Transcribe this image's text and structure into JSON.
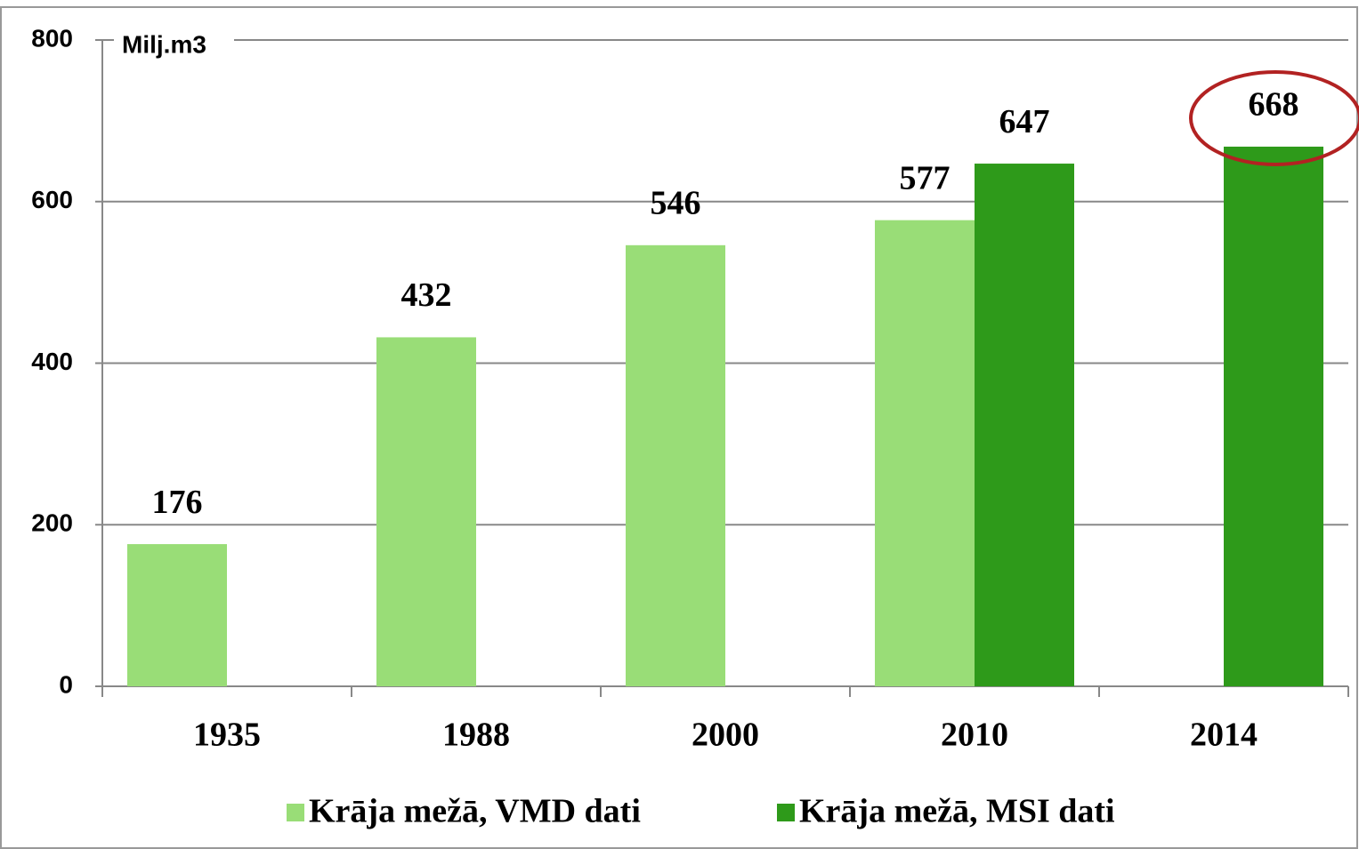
{
  "chart_data": {
    "type": "bar",
    "y_axis_label": "Milj.m3",
    "categories": [
      "1935",
      "1988",
      "2000",
      "2010",
      "2014"
    ],
    "series": [
      {
        "name": "Krāja mežā, VMD dati",
        "color": "#99dd77",
        "values": [
          176,
          432,
          546,
          577,
          null
        ]
      },
      {
        "name": "Krāja mežā, MSI dati",
        "color": "#2e9a1a",
        "values": [
          null,
          null,
          null,
          647,
          668
        ]
      }
    ],
    "ylim": [
      0,
      800
    ],
    "yticks": [
      0,
      200,
      400,
      600,
      800
    ],
    "grid": true,
    "legend": "bottom"
  }
}
